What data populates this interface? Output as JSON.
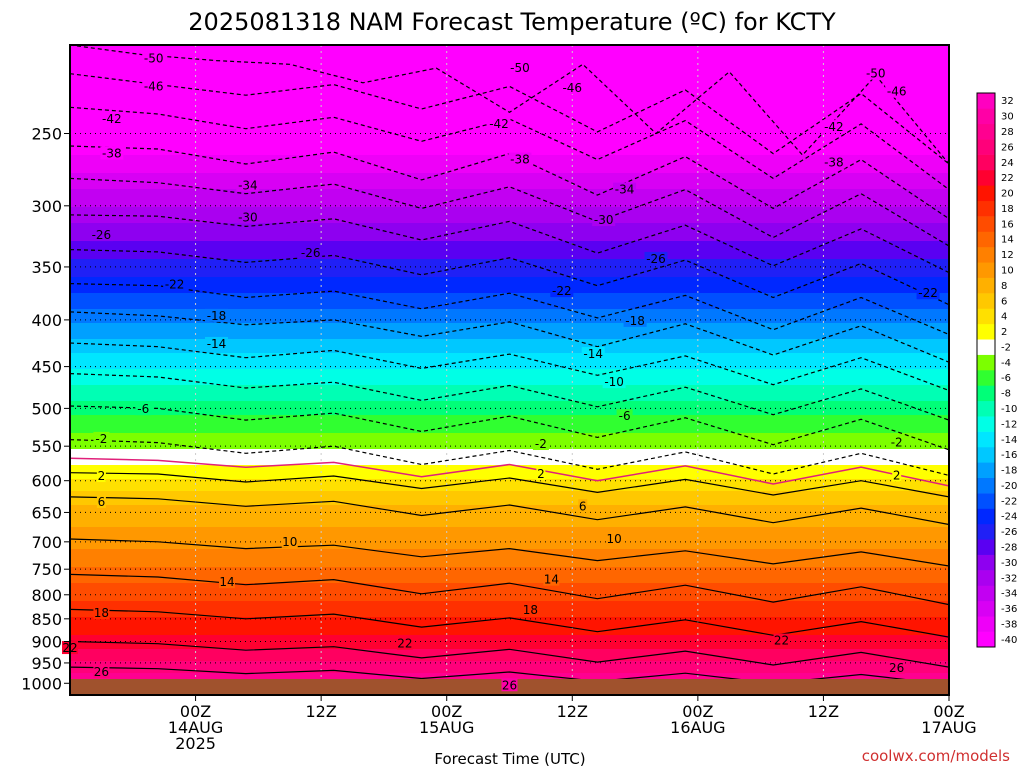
{
  "title": "2025081318 NAM Forecast Temperature (ºC) for KCTY",
  "credit": "coolwx.com/models",
  "chart_data": {
    "type": "heatmap",
    "title": "2025081318 NAM Forecast Temperature (ºC) for KCTY",
    "xlabel": "Forecast Time (UTC)",
    "ylabel": "",
    "y_scale": "log",
    "ylim": [
      200,
      1030
    ],
    "y_ticks": [
      250,
      300,
      350,
      400,
      450,
      500,
      550,
      600,
      650,
      700,
      750,
      800,
      850,
      900,
      950,
      1000
    ],
    "xlim": [
      -6,
      78
    ],
    "x_ticks": [
      {
        "hour": 6,
        "lines": [
          "00Z",
          "14AUG",
          "2025"
        ]
      },
      {
        "hour": 18,
        "lines": [
          "12Z"
        ]
      },
      {
        "hour": 30,
        "lines": [
          "00Z",
          "15AUG"
        ]
      },
      {
        "hour": 42,
        "lines": [
          "12Z"
        ]
      },
      {
        "hour": 54,
        "lines": [
          "00Z",
          "16AUG"
        ]
      },
      {
        "hour": 66,
        "lines": [
          "12Z"
        ]
      },
      {
        "hour": 78,
        "lines": [
          "00Z",
          "17AUG"
        ]
      }
    ],
    "colorbar": {
      "levels": [
        -40,
        -38,
        -36,
        -34,
        -32,
        -30,
        -28,
        -26,
        -24,
        -22,
        -20,
        -18,
        -16,
        -14,
        -12,
        -10,
        -8,
        -6,
        -4,
        -2,
        0,
        2,
        4,
        6,
        8,
        10,
        12,
        14,
        16,
        18,
        20,
        22,
        24,
        26,
        28,
        30,
        32
      ],
      "labels": [
        -40,
        -38,
        -36,
        -34,
        -32,
        -30,
        -28,
        -26,
        -24,
        -22,
        -20,
        -18,
        -16,
        -14,
        -12,
        -10,
        -8,
        -6,
        -4,
        -2,
        2,
        4,
        6,
        8,
        10,
        12,
        14,
        16,
        18,
        20,
        22,
        24,
        26,
        28,
        30,
        32
      ],
      "colors": [
        "#ff00ff",
        "#ee00f8",
        "#d800f4",
        "#c200f2",
        "#aa00f0",
        "#8e00f0",
        "#5a00f2",
        "#2020f6",
        "#0028ff",
        "#0050ff",
        "#0078ff",
        "#00a0ff",
        "#00c8ff",
        "#00e6ff",
        "#00ffe6",
        "#00ffb4",
        "#00ff78",
        "#30ff30",
        "#7cff00",
        "#ffffff",
        "#ffff00",
        "#ffe000",
        "#ffc800",
        "#ffb000",
        "#ff9800",
        "#ff8000",
        "#ff6600",
        "#ff4c00",
        "#ff3000",
        "#ff1400",
        "#ff0030",
        "#ff0060",
        "#ff007a",
        "#ff0090",
        "#ff00a6",
        "#ff00c0"
      ]
    },
    "series": [
      {
        "label": "-50",
        "values": [
          [
            200,
            205
          ],
          [
            208,
            210
          ],
          [
            220,
            212
          ],
          [
            237,
            210
          ],
          [
            250,
            214
          ],
          [
            264,
            216
          ],
          [
            270,
            215
          ]
        ]
      },
      {
        "label": "-46",
        "values": [
          [
            215,
            221
          ],
          [
            227,
            221
          ],
          [
            235,
            222
          ],
          [
            249,
            224
          ],
          [
            263,
            226
          ],
          [
            270,
            225
          ]
        ]
      },
      {
        "label": "-42",
        "values": [
          [
            234,
            238
          ],
          [
            247,
            240
          ],
          [
            255,
            241
          ],
          [
            267,
            242
          ],
          [
            280,
            244
          ],
          [
            288,
            245
          ]
        ]
      },
      {
        "label": "-38",
        "values": [
          [
            258,
            260
          ],
          [
            270,
            262
          ],
          [
            281,
            263
          ],
          [
            292,
            265
          ],
          [
            302,
            267
          ],
          [
            310,
            268
          ]
        ]
      },
      {
        "label": "-34",
        "values": [
          [
            280,
            283
          ],
          [
            291,
            284
          ],
          [
            302,
            286
          ],
          [
            312,
            288
          ],
          [
            325,
            291
          ],
          [
            332,
            292
          ]
        ]
      },
      {
        "label": "-30",
        "values": [
          [
            307,
            308
          ],
          [
            316,
            310
          ],
          [
            327,
            312
          ],
          [
            338,
            315
          ],
          [
            349,
            318
          ],
          [
            355,
            318
          ]
        ]
      },
      {
        "label": "-26",
        "values": [
          [
            335,
            337
          ],
          [
            346,
            340
          ],
          [
            357,
            342
          ],
          [
            367,
            344
          ],
          [
            378,
            347
          ],
          [
            385,
            348
          ]
        ]
      },
      {
        "label": "-22",
        "values": [
          [
            365,
            367
          ],
          [
            378,
            372
          ],
          [
            389,
            374
          ],
          [
            398,
            376
          ],
          [
            410,
            378
          ],
          [
            415,
            379
          ]
        ]
      },
      {
        "label": "-18",
        "values": [
          [
            392,
            396
          ],
          [
            405,
            400
          ],
          [
            417,
            402
          ],
          [
            428,
            404
          ],
          [
            437,
            406
          ],
          [
            445,
            408
          ]
        ]
      },
      {
        "label": "-14",
        "values": [
          [
            424,
            428
          ],
          [
            440,
            432
          ],
          [
            452,
            436
          ],
          [
            460,
            438
          ],
          [
            471,
            440
          ],
          [
            478,
            441
          ]
        ]
      },
      {
        "label": "-10",
        "values": [
          [
            458,
            462
          ],
          [
            475,
            468
          ],
          [
            490,
            472
          ],
          [
            498,
            474
          ],
          [
            508,
            476
          ],
          [
            515,
            478
          ]
        ]
      },
      {
        "label": "-6",
        "values": [
          [
            497,
            500
          ],
          [
            515,
            506
          ],
          [
            530,
            510
          ],
          [
            538,
            512
          ],
          [
            548,
            514
          ],
          [
            555,
            516
          ]
        ]
      },
      {
        "label": "-2",
        "values": [
          [
            541,
            545
          ],
          [
            560,
            550
          ],
          [
            576,
            556
          ],
          [
            583,
            558
          ],
          [
            590,
            560
          ],
          [
            592,
            560
          ]
        ]
      },
      {
        "label": "0",
        "values": [
          [
            567,
            570
          ],
          [
            580,
            573
          ],
          [
            594,
            576
          ],
          [
            600,
            578
          ],
          [
            605,
            580
          ],
          [
            608,
            581
          ]
        ]
      },
      {
        "label": "2",
        "values": [
          [
            588,
            590
          ],
          [
            602,
            593
          ],
          [
            612,
            596
          ],
          [
            618,
            598
          ],
          [
            622,
            600
          ],
          [
            625,
            601
          ]
        ]
      },
      {
        "label": "6",
        "values": [
          [
            625,
            628
          ],
          [
            640,
            632
          ],
          [
            655,
            638
          ],
          [
            662,
            641
          ],
          [
            667,
            643
          ],
          [
            670,
            644
          ]
        ]
      },
      {
        "label": "10",
        "values": [
          [
            695,
            700
          ],
          [
            712,
            706
          ],
          [
            727,
            712
          ],
          [
            734,
            716
          ],
          [
            740,
            718
          ],
          [
            744,
            720
          ]
        ]
      },
      {
        "label": "14",
        "values": [
          [
            760,
            765
          ],
          [
            780,
            770
          ],
          [
            798,
            777
          ],
          [
            808,
            781
          ],
          [
            815,
            784
          ],
          [
            820,
            786
          ]
        ]
      },
      {
        "label": "18",
        "values": [
          [
            830,
            835
          ],
          [
            850,
            840
          ],
          [
            868,
            848
          ],
          [
            878,
            852
          ],
          [
            886,
            856
          ],
          [
            890,
            858
          ]
        ]
      },
      {
        "label": "22",
        "values": [
          [
            900,
            905
          ],
          [
            920,
            912
          ],
          [
            938,
            918
          ],
          [
            948,
            922
          ],
          [
            955,
            925
          ],
          [
            960,
            927
          ]
        ]
      },
      {
        "label": "26",
        "values": [
          [
            960,
            964
          ],
          [
            976,
            968
          ],
          [
            988,
            972
          ],
          [
            995,
            975
          ],
          [
            1000,
            978
          ],
          [
            1003,
            979
          ]
        ]
      }
    ],
    "contour_labels": [
      {
        "text": "-50",
        "x": 2,
        "p": 207
      },
      {
        "text": "-50",
        "x": 37,
        "p": 212
      },
      {
        "text": "-50",
        "x": 71,
        "p": 215
      },
      {
        "text": "-46",
        "x": 2,
        "p": 222
      },
      {
        "text": "-46",
        "x": 42,
        "p": 223
      },
      {
        "text": "-46",
        "x": 73,
        "p": 225
      },
      {
        "text": "-42",
        "x": -2,
        "p": 241
      },
      {
        "text": "-42",
        "x": 35,
        "p": 244
      },
      {
        "text": "-42",
        "x": 67,
        "p": 246
      },
      {
        "text": "-38",
        "x": -2,
        "p": 263
      },
      {
        "text": "-38",
        "x": 37,
        "p": 267
      },
      {
        "text": "-38",
        "x": 67,
        "p": 269
      },
      {
        "text": "-34",
        "x": 11,
        "p": 285
      },
      {
        "text": "-34",
        "x": 47,
        "p": 288
      },
      {
        "text": "-34",
        "x": 80,
        "p": 289
      },
      {
        "text": "-30",
        "x": 11,
        "p": 309
      },
      {
        "text": "-30",
        "x": 45,
        "p": 311
      },
      {
        "text": "-30",
        "x": 80,
        "p": 314
      },
      {
        "text": "-26",
        "x": -3,
        "p": 323
      },
      {
        "text": "-26",
        "x": 17,
        "p": 338
      },
      {
        "text": "-26",
        "x": 50,
        "p": 343
      },
      {
        "text": "-26",
        "x": 80,
        "p": 345
      },
      {
        "text": "-22",
        "x": 4,
        "p": 366
      },
      {
        "text": "-22",
        "x": 41,
        "p": 372
      },
      {
        "text": "-22",
        "x": 76,
        "p": 374
      },
      {
        "text": "-18",
        "x": 8,
        "p": 396
      },
      {
        "text": "-18",
        "x": 48,
        "p": 401
      },
      {
        "text": "-18",
        "x": 85,
        "p": 405
      },
      {
        "text": "-14",
        "x": 8,
        "p": 425
      },
      {
        "text": "-14",
        "x": 44,
        "p": 436
      },
      {
        "text": "-14",
        "x": 83,
        "p": 438
      },
      {
        "text": "-10",
        "x": 46,
        "p": 468
      },
      {
        "text": "-10",
        "x": 84,
        "p": 475
      },
      {
        "text": "-6",
        "x": 1,
        "p": 501
      },
      {
        "text": "-6",
        "x": 47,
        "p": 510
      },
      {
        "text": "-6",
        "x": 84,
        "p": 513
      },
      {
        "text": "-2",
        "x": -3,
        "p": 540
      },
      {
        "text": "-2",
        "x": 39,
        "p": 547
      },
      {
        "text": "-2",
        "x": 73,
        "p": 545
      },
      {
        "text": "2",
        "x": -3,
        "p": 593
      },
      {
        "text": "2",
        "x": 39,
        "p": 590
      },
      {
        "text": "2",
        "x": 73,
        "p": 592
      },
      {
        "text": "6",
        "x": -3,
        "p": 633
      },
      {
        "text": "6",
        "x": 43,
        "p": 640
      },
      {
        "text": "6",
        "x": 80,
        "p": 637
      },
      {
        "text": "10",
        "x": -14,
        "p": 702
      },
      {
        "text": "10",
        "x": 15,
        "p": 700
      },
      {
        "text": "10",
        "x": 46,
        "p": 695
      },
      {
        "text": "10",
        "x": 80,
        "p": 700
      },
      {
        "text": "14",
        "x": 9,
        "p": 775
      },
      {
        "text": "14",
        "x": 40,
        "p": 770
      },
      {
        "text": "14",
        "x": 81,
        "p": 774
      },
      {
        "text": "18",
        "x": -3,
        "p": 838
      },
      {
        "text": "18",
        "x": 38,
        "p": 831
      },
      {
        "text": "18",
        "x": 80,
        "p": 833
      },
      {
        "text": "22",
        "x": -6,
        "p": 915
      },
      {
        "text": "22",
        "x": 26,
        "p": 905
      },
      {
        "text": "22",
        "x": 62,
        "p": 898
      },
      {
        "text": "26",
        "x": -3,
        "p": 972
      },
      {
        "text": "26",
        "x": 36,
        "p": 1005
      },
      {
        "text": "26",
        "x": 73,
        "p": 962
      }
    ]
  }
}
